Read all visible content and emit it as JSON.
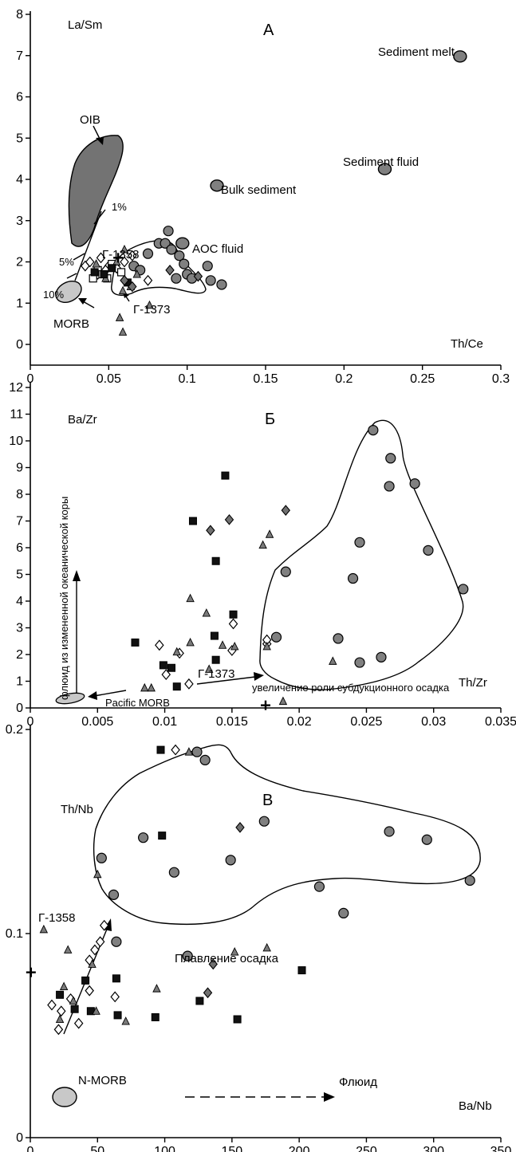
{
  "chart_data": [
    {
      "type": "scatter",
      "panel_label": "А",
      "xlabel": "Th/Ce",
      "ylabel": "La/Sm",
      "xlim": [
        0,
        0.3
      ],
      "ylim": [
        -0.5,
        8
      ],
      "xticks": [
        "0",
        "0.05",
        "0.1",
        "0.15",
        "0.2",
        "0.25",
        "0.3"
      ],
      "yticks": [
        "0",
        "1",
        "2",
        "3",
        "4",
        "5",
        "6",
        "7",
        "8"
      ],
      "annotations": [
        "OIB",
        "1%",
        "5%",
        "10%",
        "MORB",
        "Г-1358",
        "Г-1373",
        "AOC fluid",
        "Bulk sediment",
        "Sediment fluid",
        "Sediment melt"
      ],
      "end_members": [
        {
          "name": "Sediment melt",
          "x": 0.274,
          "y": 6.98
        },
        {
          "name": "Sediment fluid",
          "x": 0.226,
          "y": 4.25
        },
        {
          "name": "Bulk sediment",
          "x": 0.119,
          "y": 3.85
        },
        {
          "name": "AOC fluid",
          "x": 0.097,
          "y": 2.45
        }
      ],
      "series": [
        {
          "marker": "grey-circle",
          "points": [
            [
              0.066,
              1.9
            ],
            [
              0.075,
              2.2
            ],
            [
              0.082,
              2.45
            ],
            [
              0.086,
              2.45
            ],
            [
              0.088,
              2.75
            ],
            [
              0.09,
              2.3
            ],
            [
              0.095,
              2.15
            ],
            [
              0.098,
              1.95
            ],
            [
              0.093,
              1.6
            ],
            [
              0.1,
              1.7
            ],
            [
              0.103,
              1.6
            ],
            [
              0.113,
              1.9
            ],
            [
              0.115,
              1.55
            ],
            [
              0.122,
              1.45
            ],
            [
              0.07,
              1.8
            ]
          ]
        },
        {
          "marker": "open-diamond",
          "points": [
            [
              0.035,
              1.9
            ],
            [
              0.038,
              2.0
            ],
            [
              0.045,
              2.1
            ],
            [
              0.05,
              1.9
            ],
            [
              0.055,
              1.85
            ],
            [
              0.06,
              2.0
            ],
            [
              0.065,
              2.15
            ],
            [
              0.075,
              1.55
            ],
            [
              0.043,
              1.7
            ],
            [
              0.048,
              1.8
            ]
          ]
        },
        {
          "marker": "open-square",
          "points": [
            [
              0.04,
              1.6
            ],
            [
              0.043,
              1.8
            ],
            [
              0.046,
              1.7
            ],
            [
              0.049,
              1.6
            ],
            [
              0.052,
              1.95
            ],
            [
              0.058,
              1.75
            ]
          ]
        },
        {
          "marker": "grey-triangle",
          "points": [
            [
              0.042,
              1.95
            ],
            [
              0.048,
              1.6
            ],
            [
              0.055,
              2.0
            ],
            [
              0.059,
              1.3
            ],
            [
              0.06,
              2.3
            ],
            [
              0.064,
              1.4
            ],
            [
              0.068,
              1.7
            ],
            [
              0.076,
              0.95
            ],
            [
              0.057,
              0.65
            ],
            [
              0.059,
              0.3
            ]
          ]
        },
        {
          "marker": "black-square",
          "points": [
            [
              0.041,
              1.75
            ],
            [
              0.047,
              1.7
            ],
            [
              0.052,
              1.85
            ],
            [
              0.062,
              1.5
            ]
          ]
        },
        {
          "marker": "grey-diamond",
          "points": [
            [
              0.06,
              1.55
            ],
            [
              0.065,
              1.4
            ],
            [
              0.089,
              1.8
            ],
            [
              0.107,
              1.65
            ]
          ]
        },
        {
          "marker": "cross",
          "points": [
            [
              0.056,
              2.1
            ]
          ]
        }
      ],
      "fields": [
        {
          "name": "OIB"
        },
        {
          "name": "MORB"
        }
      ]
    },
    {
      "type": "scatter",
      "panel_label": "Б",
      "xlabel": "Th/Zr",
      "ylabel": "Ba/Zr",
      "xlim": [
        0,
        0.035
      ],
      "ylim": [
        0,
        12
      ],
      "xticks": [
        "0",
        "0.005",
        "0.01",
        "0.015",
        "0.02",
        "0.025",
        "0.03",
        "0.035"
      ],
      "yticks": [
        "0",
        "1",
        "2",
        "3",
        "4",
        "5",
        "6",
        "7",
        "8",
        "9",
        "10",
        "11",
        "12"
      ],
      "annotations": [
        "флюид из измененной океанической коры",
        "Pacific MORB",
        "Г-1373",
        "увеличение роли субдукционного осадка"
      ],
      "series": [
        {
          "marker": "grey-circle",
          "points": [
            [
              0.0255,
              10.4
            ],
            [
              0.0268,
              9.35
            ],
            [
              0.0267,
              8.3
            ],
            [
              0.0286,
              8.4
            ],
            [
              0.0245,
              6.2
            ],
            [
              0.0296,
              5.9
            ],
            [
              0.019,
              5.1
            ],
            [
              0.024,
              4.85
            ],
            [
              0.0322,
              4.45
            ],
            [
              0.0183,
              2.65
            ],
            [
              0.0229,
              2.6
            ],
            [
              0.0245,
              1.7
            ],
            [
              0.0261,
              1.9
            ]
          ]
        },
        {
          "marker": "black-square",
          "points": [
            [
              0.0145,
              8.7
            ],
            [
              0.0121,
              7.0
            ],
            [
              0.0138,
              5.5
            ],
            [
              0.0151,
              3.5
            ],
            [
              0.0137,
              2.7
            ],
            [
              0.0078,
              2.45
            ],
            [
              0.0099,
              1.6
            ],
            [
              0.0105,
              1.5
            ],
            [
              0.0109,
              0.8
            ],
            [
              0.0138,
              1.8
            ]
          ]
        },
        {
          "marker": "grey-diamond",
          "points": [
            [
              0.0134,
              6.65
            ],
            [
              0.0148,
              7.05
            ],
            [
              0.019,
              7.4
            ]
          ]
        },
        {
          "marker": "open-diamond",
          "points": [
            [
              0.0096,
              2.35
            ],
            [
              0.0151,
              3.15
            ],
            [
              0.015,
              2.15
            ],
            [
              0.0111,
              2.05
            ],
            [
              0.0101,
              1.25
            ],
            [
              0.0118,
              0.9
            ],
            [
              0.0176,
              2.4
            ],
            [
              0.0176,
              2.55
            ]
          ]
        },
        {
          "marker": "grey-triangle",
          "points": [
            [
              0.0173,
              6.1
            ],
            [
              0.0178,
              6.5
            ],
            [
              0.0119,
              4.1
            ],
            [
              0.0131,
              3.55
            ],
            [
              0.0119,
              2.45
            ],
            [
              0.0109,
              2.1
            ],
            [
              0.0143,
              2.35
            ],
            [
              0.0152,
              2.3
            ],
            [
              0.0176,
              2.3
            ],
            [
              0.0085,
              0.75
            ],
            [
              0.009,
              0.75
            ],
            [
              0.0133,
              1.45
            ],
            [
              0.0188,
              0.25
            ],
            [
              0.0225,
              1.75
            ]
          ]
        },
        {
          "marker": "cross",
          "points": [
            [
              0.0175,
              0.1
            ]
          ]
        }
      ],
      "fields": [
        {
          "name": "Pacific MORB"
        }
      ]
    },
    {
      "type": "scatter",
      "panel_label": "В",
      "xlabel": "Ba/Nb",
      "ylabel": "Th/Nb",
      "xlim": [
        0,
        350
      ],
      "ylim": [
        0,
        0.2
      ],
      "xticks": [
        "0",
        "50",
        "100",
        "150",
        "200",
        "250",
        "300",
        "350"
      ],
      "yticks": [
        "0",
        "0.1",
        "0.2"
      ],
      "annotations": [
        "Плавление осадка",
        "Г-1358",
        "N-MORB",
        "Флюид"
      ],
      "series": [
        {
          "marker": "grey-circle",
          "points": [
            [
              53,
              0.137
            ],
            [
              62,
              0.119
            ],
            [
              64,
              0.096
            ],
            [
              84,
              0.147
            ],
            [
              107,
              0.13
            ],
            [
              124,
              0.189
            ],
            [
              130,
              0.185
            ],
            [
              149,
              0.136
            ],
            [
              174,
              0.155
            ],
            [
              215,
              0.123
            ],
            [
              233,
              0.11
            ],
            [
              267,
              0.15
            ],
            [
              295,
              0.146
            ],
            [
              327,
              0.126
            ],
            [
              117,
              0.089
            ]
          ]
        },
        {
          "marker": "black-square",
          "points": [
            [
              97,
              0.19
            ],
            [
              98,
              0.148
            ],
            [
              22,
              0.07
            ],
            [
              33,
              0.063
            ],
            [
              41,
              0.077
            ],
            [
              45,
              0.062
            ],
            [
              64,
              0.078
            ],
            [
              65,
              0.06
            ],
            [
              93,
              0.059
            ],
            [
              126,
              0.067
            ],
            [
              154,
              0.058
            ],
            [
              202,
              0.082
            ]
          ]
        },
        {
          "marker": "open-diamond",
          "points": [
            [
              108,
              0.19
            ],
            [
              55,
              0.104
            ],
            [
              52,
              0.096
            ],
            [
              48,
              0.092
            ],
            [
              44,
              0.087
            ],
            [
              16,
              0.065
            ],
            [
              23,
              0.062
            ],
            [
              30,
              0.068
            ],
            [
              63,
              0.069
            ],
            [
              36,
              0.056
            ],
            [
              21,
              0.053
            ],
            [
              44,
              0.072
            ]
          ]
        },
        {
          "marker": "grey-triangle",
          "points": [
            [
              118,
              0.189
            ],
            [
              50,
              0.129
            ],
            [
              10,
              0.102
            ],
            [
              28,
              0.092
            ],
            [
              46,
              0.085
            ],
            [
              25,
              0.074
            ],
            [
              32,
              0.067
            ],
            [
              49,
              0.062
            ],
            [
              71,
              0.057
            ],
            [
              94,
              0.073
            ],
            [
              152,
              0.091
            ],
            [
              176,
              0.093
            ],
            [
              22,
              0.058
            ]
          ]
        },
        {
          "marker": "grey-diamond",
          "points": [
            [
              156,
              0.152
            ],
            [
              136,
              0.085
            ],
            [
              132,
              0.071
            ]
          ]
        },
        {
          "marker": "cross",
          "points": [
            [
              0.5,
              0.081
            ]
          ]
        }
      ],
      "fields": [
        {
          "name": "N-MORB"
        }
      ]
    }
  ]
}
